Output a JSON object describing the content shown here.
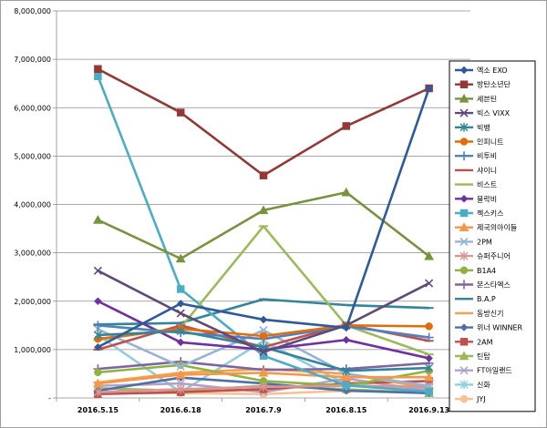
{
  "chart_data": {
    "type": "line",
    "title": "",
    "xlabel": "",
    "ylabel": "",
    "ylim": [
      0,
      8000000
    ],
    "yticks": [
      "-",
      "1,000,000",
      "2,000,000",
      "3,000,000",
      "4,000,000",
      "5,000,000",
      "6,000,000",
      "7,000,000",
      "8,000,000"
    ],
    "ytick_values": [
      0,
      1000000,
      2000000,
      3000000,
      4000000,
      5000000,
      6000000,
      7000000,
      8000000
    ],
    "categories": [
      "2016.5.15",
      "2016.6.18",
      "2016.7.9",
      "2016.8.15",
      "2016.9.13"
    ],
    "grid": true,
    "legend_position": "right",
    "series": [
      {
        "name": "엑소 EXO",
        "color": "#2e5a9c",
        "marker": "diamond",
        "values": [
          1050000,
          1950000,
          1620000,
          1450000,
          6400000
        ]
      },
      {
        "name": "방탄소년단",
        "color": "#953735",
        "marker": "square",
        "values": [
          6800000,
          5900000,
          4600000,
          5620000,
          6400000
        ]
      },
      {
        "name": "세븐틴",
        "color": "#77933c",
        "marker": "triangle",
        "values": [
          3680000,
          2880000,
          3880000,
          4250000,
          2930000
        ]
      },
      {
        "name": "빅스 VIXX",
        "color": "#5f497a",
        "marker": "x",
        "values": [
          2630000,
          1750000,
          950000,
          1500000,
          2370000
        ]
      },
      {
        "name": "빅뱅",
        "color": "#31859c",
        "marker": "asterisk",
        "values": [
          1300000,
          1380000,
          1050000,
          560000,
          620000
        ]
      },
      {
        "name": "인피니트",
        "color": "#e46c0a",
        "marker": "circle",
        "values": [
          1220000,
          1430000,
          1280000,
          1500000,
          1480000
        ]
      },
      {
        "name": "비투비",
        "color": "#4f81bd",
        "marker": "plus",
        "values": [
          1500000,
          1350000,
          1220000,
          1480000,
          1250000
        ]
      },
      {
        "name": "샤이니",
        "color": "#c0504d",
        "marker": "dash",
        "values": [
          1000000,
          1500000,
          1050000,
          1520000,
          1180000
        ]
      },
      {
        "name": "비스트",
        "color": "#9bbb59",
        "marker": "dash",
        "values": [
          1200000,
          1450000,
          3550000,
          1500000,
          900000
        ]
      },
      {
        "name": "블락비",
        "color": "#7030a0",
        "marker": "diamond",
        "values": [
          2000000,
          1150000,
          1000000,
          1200000,
          820000
        ]
      },
      {
        "name": "젝스키스",
        "color": "#4bacc6",
        "marker": "square",
        "values": [
          6650000,
          2250000,
          870000,
          260000,
          130000
        ]
      },
      {
        "name": "제국의아이들",
        "color": "#f79646",
        "marker": "triangle",
        "values": [
          300000,
          480000,
          520000,
          430000,
          430000
        ]
      },
      {
        "name": "2PM",
        "color": "#95b3d7",
        "marker": "x",
        "values": [
          1420000,
          650000,
          1400000,
          500000,
          250000
        ]
      },
      {
        "name": "슈퍼주니어",
        "color": "#d99694",
        "marker": "asterisk",
        "values": [
          120000,
          180000,
          230000,
          250000,
          230000
        ]
      },
      {
        "name": "B1A4",
        "color": "#8eb43f",
        "marker": "circle",
        "values": [
          530000,
          680000,
          350000,
          250000,
          560000
        ]
      },
      {
        "name": "몬스타엑스",
        "color": "#8064a2",
        "marker": "plus",
        "values": [
          600000,
          750000,
          580000,
          600000,
          720000
        ]
      },
      {
        "name": "B.A.P",
        "color": "#31859c",
        "marker": "dash",
        "values": [
          1520000,
          1550000,
          2040000,
          1920000,
          1860000
        ]
      },
      {
        "name": "동방신기",
        "color": "#f5a04a",
        "marker": "dash",
        "values": [
          320000,
          520000,
          600000,
          500000,
          200000
        ]
      },
      {
        "name": "위너 WINNER",
        "color": "#4f6fa8",
        "marker": "diamond",
        "values": [
          150000,
          420000,
          300000,
          150000,
          100000
        ]
      },
      {
        "name": "2AM",
        "color": "#c0504d",
        "marker": "square",
        "values": [
          80000,
          120000,
          180000,
          300000,
          350000
        ]
      },
      {
        "name": "틴탑",
        "color": "#9bbb59",
        "marker": "triangle",
        "values": [
          200000,
          150000,
          250000,
          180000,
          100000
        ]
      },
      {
        "name": "FT아일랜드",
        "color": "#b3a2c7",
        "marker": "x",
        "values": [
          250000,
          300000,
          120000,
          400000,
          150000
        ]
      },
      {
        "name": "신화",
        "color": "#92cddc",
        "marker": "asterisk",
        "values": [
          1300000,
          120000,
          1180000,
          280000,
          180000
        ]
      },
      {
        "name": "JYJ",
        "color": "#fac090",
        "marker": "circle",
        "values": [
          100000,
          100000,
          80000,
          150000,
          120000
        ]
      }
    ]
  }
}
